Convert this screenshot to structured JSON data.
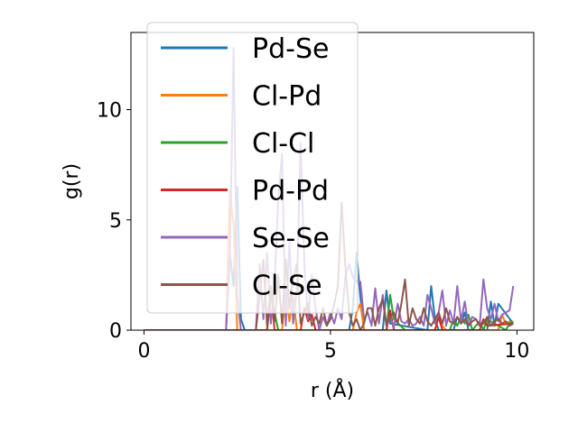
{
  "chart_data": {
    "type": "line",
    "title": "",
    "xlabel": "r (Å)",
    "ylabel": "g(r)",
    "xlim": [
      -0.35,
      10.45
    ],
    "ylim": [
      0,
      13.5
    ],
    "xticks": [
      0,
      5,
      10
    ],
    "xtick_labels": [
      "0",
      "5",
      "10"
    ],
    "yticks": [
      0,
      5,
      10
    ],
    "ytick_labels": [
      "0",
      "5",
      "10"
    ],
    "grid": false,
    "legend_position": "upper-left",
    "series": [
      {
        "name": "Pd-Se",
        "color": "#1f77b4",
        "x": [
          0,
          2.2,
          2.3,
          2.4,
          2.5,
          2.6,
          2.7,
          5.5,
          5.6,
          5.7,
          5.8,
          5.9,
          6.4,
          6.5,
          6.6,
          7.6,
          7.7,
          7.8,
          7.9,
          8.3,
          8.4,
          8.5,
          8.6,
          8.7,
          9.2,
          9.3,
          9.4,
          9.5,
          9.9
        ],
        "y": [
          0,
          0,
          3.5,
          2.0,
          6.5,
          0.5,
          0,
          0,
          1.0,
          3.5,
          1.5,
          0,
          0,
          1.8,
          0.3,
          0,
          2.0,
          0.5,
          0,
          0,
          0.6,
          0.3,
          0.8,
          0,
          0,
          1.3,
          0.2,
          1.2,
          0.3
        ]
      },
      {
        "name": "Cl-Pd",
        "color": "#ff7f0e",
        "x": [
          0,
          2.2,
          2.3,
          2.4,
          2.5,
          3.7,
          3.8,
          3.9,
          4.0,
          4.1,
          5.6,
          5.7,
          5.8,
          5.9,
          7.8,
          7.9,
          8.0,
          8.1,
          9.5,
          9.6,
          9.7,
          9.8,
          9.9
        ],
        "y": [
          0,
          0,
          6.3,
          4.8,
          0,
          0,
          1.7,
          0.4,
          1.5,
          0,
          0,
          0.8,
          1.2,
          0,
          0,
          0.6,
          0.2,
          0,
          0,
          0.7,
          0.3,
          0.4,
          0.3
        ]
      },
      {
        "name": "Cl-Cl",
        "color": "#2ca02c",
        "x": [
          0,
          3.3,
          3.4,
          3.5,
          3.6,
          6.5,
          6.6,
          6.7,
          7.0,
          8.2,
          8.3,
          8.4,
          8.5,
          8.6,
          8.7,
          8.8,
          9.0,
          9.1,
          9.2,
          9.7,
          9.8,
          9.9
        ],
        "y": [
          0,
          0,
          1.5,
          0.8,
          0,
          0,
          1.6,
          0.5,
          0,
          0,
          0.5,
          0.2,
          0.6,
          0.3,
          0.7,
          0,
          0.4,
          0,
          0.5,
          0,
          0.3,
          0.4
        ]
      },
      {
        "name": "Pd-Pd",
        "color": "#d62728",
        "x": [
          0,
          3.3,
          3.4,
          3.5,
          4.2,
          4.3,
          4.4,
          4.5,
          4.6,
          6.5,
          6.6,
          6.7,
          7.8,
          7.9,
          8.0,
          9.0,
          9.1,
          9.2,
          9.9
        ],
        "y": [
          0,
          0,
          2.0,
          0,
          0,
          1.0,
          0.4,
          0.7,
          0,
          0,
          0.9,
          0,
          0,
          0.6,
          0,
          0,
          0.5,
          0.2,
          0.3
        ]
      },
      {
        "name": "Se-Se",
        "color": "#9467bd",
        "x": [
          0,
          2.2,
          2.3,
          2.4,
          2.5,
          2.6,
          3.0,
          3.1,
          3.2,
          3.3,
          3.4,
          3.5,
          3.6,
          3.7,
          3.8,
          3.9,
          4.0,
          4.1,
          4.2,
          4.3,
          4.4,
          4.5,
          4.6,
          4.7,
          4.8,
          4.9,
          5.0,
          5.1,
          5.2,
          5.3,
          5.4,
          5.5,
          5.6,
          5.7,
          5.8,
          5.9,
          6.0,
          6.1,
          6.2,
          6.3,
          6.4,
          6.5,
          6.6,
          6.7,
          6.8,
          6.9,
          7.0,
          7.1,
          7.2,
          7.3,
          7.4,
          7.5,
          7.6,
          7.7,
          7.8,
          7.9,
          8.0,
          8.1,
          8.2,
          8.3,
          8.4,
          8.5,
          8.6,
          8.7,
          8.8,
          8.9,
          9.0,
          9.1,
          9.2,
          9.3,
          9.4,
          9.5,
          9.6,
          9.7,
          9.8,
          9.9
        ],
        "y": [
          0,
          0,
          3.0,
          12.8,
          1.5,
          0,
          0,
          3.0,
          0.5,
          3.5,
          0.3,
          2.0,
          6.0,
          8.0,
          0.2,
          4.0,
          0.3,
          2.0,
          8.5,
          3.0,
          0.5,
          2.5,
          1.0,
          0,
          0.6,
          0.2,
          0.8,
          0.3,
          1.0,
          0.5,
          2.5,
          3.0,
          2.4,
          2.2,
          2.2,
          0.5,
          0.8,
          0.2,
          1.9,
          0.3,
          1.6,
          0.2,
          0.6,
          0.1,
          1.2,
          0.4,
          0.3,
          0.5,
          0.2,
          0.3,
          0.6,
          0.2,
          1.6,
          1.0,
          0.3,
          0.8,
          1.8,
          0.2,
          0.9,
          0.3,
          2.0,
          0.4,
          1.3,
          0.2,
          0.6,
          0.5,
          0.2,
          2.3,
          1.0,
          0.5,
          1.2,
          0.4,
          0.7,
          0.8,
          0.9,
          2.0
        ]
      },
      {
        "name": "Cl-Se",
        "color": "#8c564b",
        "x": [
          0,
          3.0,
          3.1,
          3.2,
          3.3,
          3.4,
          3.5,
          3.6,
          3.7,
          3.8,
          3.9,
          4.0,
          4.1,
          4.2,
          4.3,
          4.4,
          4.5,
          4.6,
          4.7,
          4.8,
          4.9,
          5.0,
          5.1,
          5.2,
          5.3,
          5.4,
          5.5,
          5.6,
          5.7,
          5.8,
          5.9,
          6.0,
          6.1,
          6.2,
          6.3,
          6.4,
          6.5,
          6.6,
          6.7,
          6.8,
          6.9,
          7.0,
          7.1,
          7.2,
          7.3,
          7.4,
          7.5,
          7.6,
          7.7,
          7.8,
          7.9,
          8.0,
          8.1,
          8.2,
          8.3,
          8.4,
          8.5,
          8.6,
          8.7,
          8.8,
          8.9,
          9.0,
          9.1,
          9.2,
          9.3,
          9.4,
          9.5,
          9.6,
          9.7,
          9.8,
          9.9
        ],
        "y": [
          0,
          0,
          1.5,
          3.2,
          0.2,
          2.0,
          0.4,
          2.5,
          0.3,
          3.2,
          1.0,
          2.3,
          3.0,
          0.3,
          0.8,
          1.2,
          0.2,
          0.6,
          0.3,
          1.0,
          0.2,
          0.5,
          1.2,
          2.0,
          5.8,
          2.8,
          0.8,
          0.2,
          0.5,
          0,
          0.3,
          1.0,
          1.0,
          0.2,
          1.0,
          1.4,
          0.2,
          0.6,
          0.8,
          0.3,
          1.2,
          2.3,
          0.2,
          1.0,
          0.5,
          0.3,
          1.0,
          0.4,
          0.2,
          0.5,
          0.8,
          0.3,
          1.0,
          0.4,
          0.3,
          0.6,
          0.3,
          0.5,
          0.2,
          0.4,
          0.5,
          0.2,
          0.3,
          0.6,
          0.2,
          0.4,
          0.5,
          0.3,
          0.4,
          0.2,
          0.3
        ]
      }
    ]
  }
}
